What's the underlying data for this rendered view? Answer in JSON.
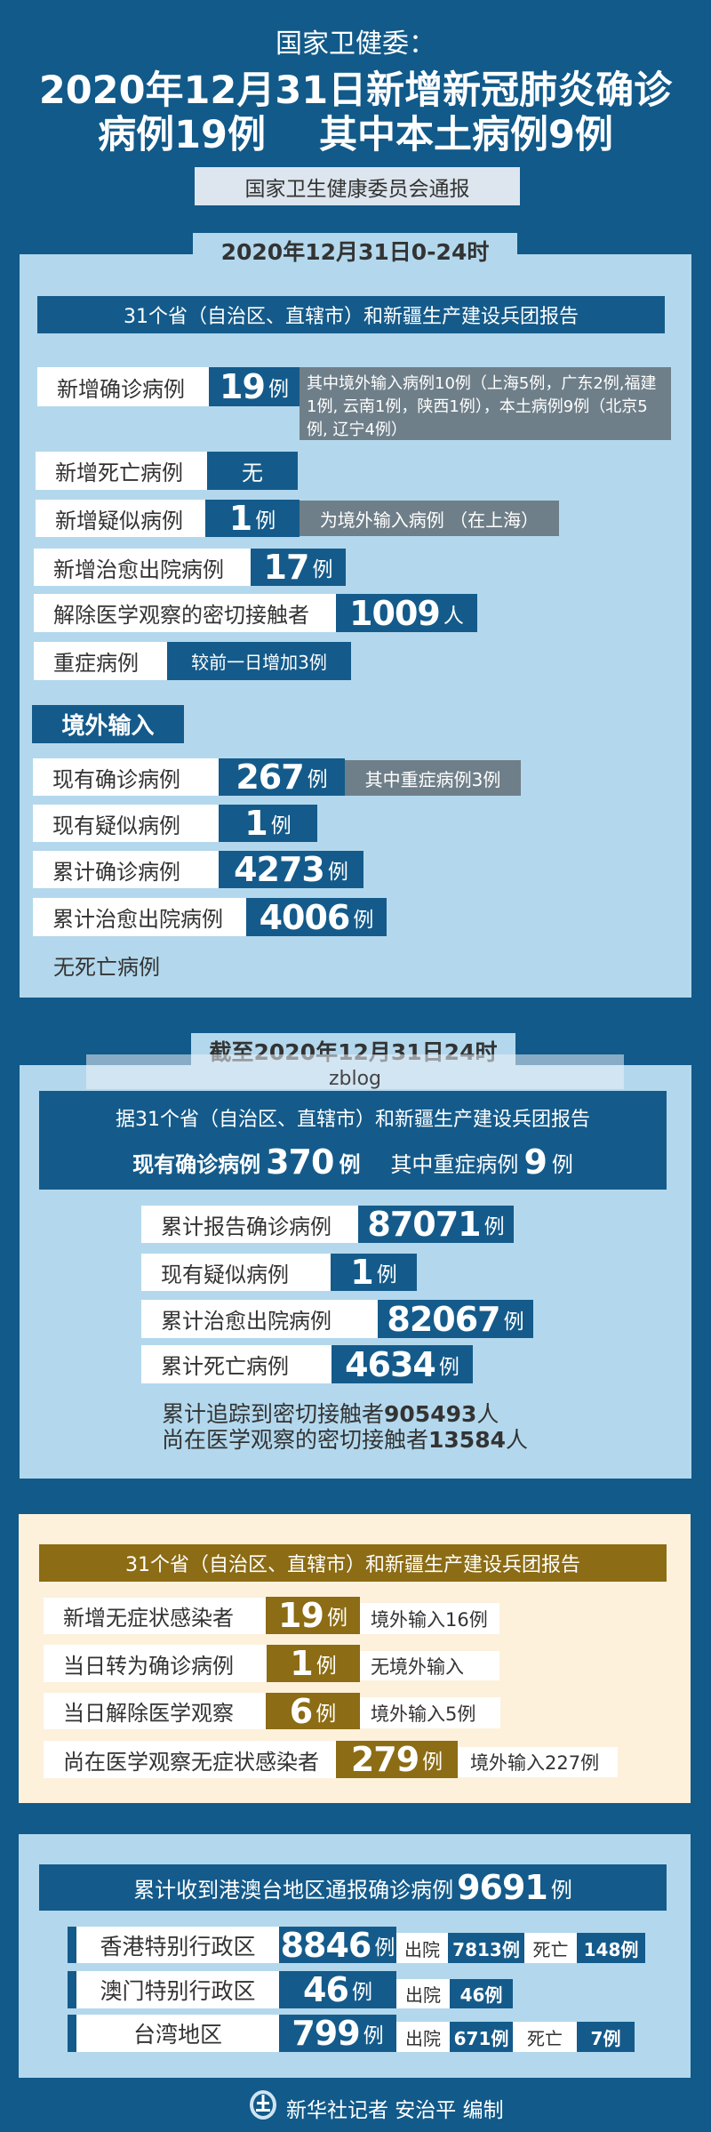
{
  "colors": {
    "background": "#115a8a",
    "panel": "#b3d8ed",
    "dark_box": "#145b8b",
    "gray_note": "#6f7f89",
    "gold": "#8c6c14",
    "cream_panel": "#fdf1dc"
  },
  "header": {
    "subtitle": "国家卫健委：",
    "title_line1": "2020年12月31日新增新冠肺炎确诊",
    "title_line2_a": "病例19例",
    "title_line2_b": "其中本土病例9例",
    "source": "国家卫生健康委员会通报"
  },
  "daily": {
    "tab": "2020年12月31日0-24时",
    "report_header": "31个省（自治区、直辖市）和新疆生产建设兵团报告",
    "rows": [
      {
        "label": "新增确诊病例",
        "value": "19",
        "unit": "例",
        "note": "其中境外输入病例10例（上海5例，广东2例,福建1例, 云南1例，陕西1例），本土病例9例（北京5例, 辽宁4例）"
      },
      {
        "label": "新增死亡病例",
        "value": "无"
      },
      {
        "label": "新增疑似病例",
        "value": "1",
        "unit": "例",
        "note": "为境外输入病例 （在上海）"
      },
      {
        "label": "新增治愈出院病例",
        "value": "17",
        "unit": "例"
      },
      {
        "label": "解除医学观察的密切接触者",
        "value": "1009",
        "unit": "人"
      },
      {
        "label": "重症病例",
        "value": "较前一日增加3例"
      }
    ]
  },
  "imported": {
    "title": "境外输入",
    "rows": [
      {
        "label": "现有确诊病例",
        "value": "267",
        "unit": "例",
        "note": "其中重症病例3例"
      },
      {
        "label": "现有疑似病例",
        "value": "1",
        "unit": "例"
      },
      {
        "label": "累计确诊病例",
        "value": "4273",
        "unit": "例"
      },
      {
        "label": "累计治愈出院病例",
        "value": "4006",
        "unit": "例"
      }
    ],
    "footnote": "无死亡病例"
  },
  "cumulative": {
    "tab": "截至2020年12月31日24时",
    "watermark": "zblog",
    "header_line1": "据31个省（自治区、直辖市）和新疆生产建设兵团报告",
    "current_label": "现有确诊病例",
    "current_value": "370",
    "current_unit": "例",
    "severe_label": "其中重症病例",
    "severe_value": "9",
    "severe_unit": "例",
    "rows": [
      {
        "label": "累计报告确诊病例",
        "value": "87071",
        "unit": "例"
      },
      {
        "label": "现有疑似病例",
        "value": "1",
        "unit": "例"
      },
      {
        "label": "累计治愈出院病例",
        "value": "82067",
        "unit": "例"
      },
      {
        "label": "累计死亡病例",
        "value": "4634",
        "unit": "例"
      }
    ],
    "traced_label": "累计追踪到密切接触者",
    "traced_value": "905493",
    "traced_unit": "人",
    "observed_label": "尚在医学观察的密切接触者",
    "observed_value": "13584",
    "observed_unit": "人"
  },
  "asymptomatic": {
    "header": "31个省（自治区、直辖市）和新疆生产建设兵团报告",
    "rows": [
      {
        "label": "新增无症状感染者",
        "value": "19",
        "unit": "例",
        "note": "境外输入16例"
      },
      {
        "label": "当日转为确诊病例",
        "value": "1",
        "unit": "例",
        "note": "无境外输入"
      },
      {
        "label": "当日解除医学观察",
        "value": "6",
        "unit": "例",
        "note": "境外输入5例"
      },
      {
        "label": "尚在医学观察无症状感染者",
        "value": "279",
        "unit": "例",
        "note": "境外输入227例"
      }
    ]
  },
  "hmt": {
    "header_text": "累计收到港澳台地区通报确诊病例",
    "total": "9691",
    "unit": "例",
    "discharged_label": "出院",
    "death_label": "死亡",
    "rows": [
      {
        "region": "香港特别行政区",
        "value": "8846",
        "unit": "例",
        "discharged": "7813例",
        "deaths": "148例"
      },
      {
        "region": "澳门特别行政区",
        "value": "46",
        "unit": "例",
        "discharged": "46例"
      },
      {
        "region": "台湾地区",
        "value": "799",
        "unit": "例",
        "discharged": "671例",
        "deaths": "7例"
      }
    ]
  },
  "footer": {
    "logo_icon": "xinhua-logo-icon",
    "credit": "新华社记者 安治平 编制"
  }
}
